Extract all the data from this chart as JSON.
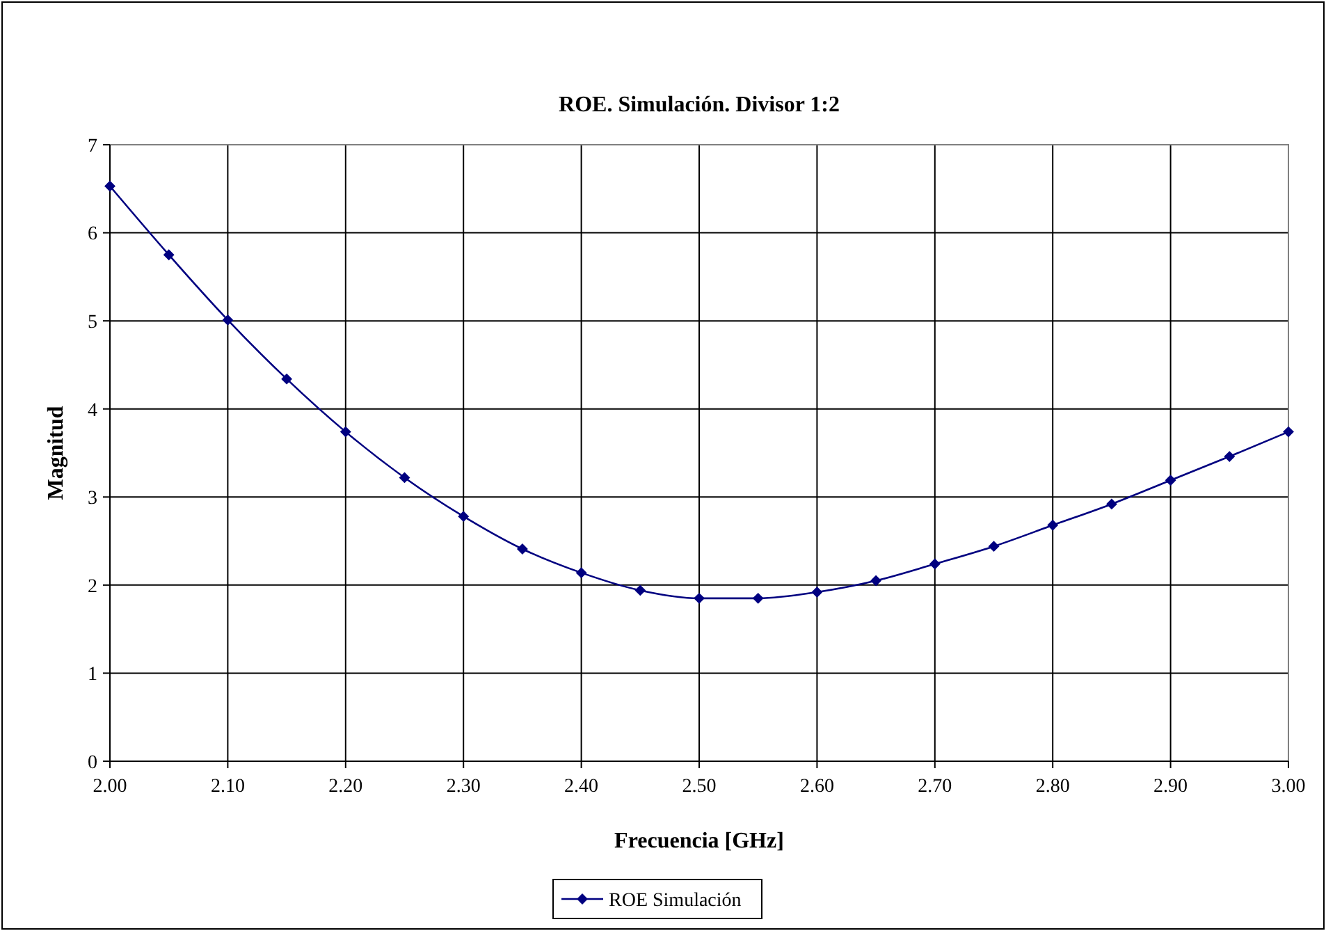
{
  "chart_data": {
    "type": "line",
    "title": "ROE. Simulación. Divisor 1:2",
    "xlabel": "Frecuencia [GHz]",
    "ylabel": "Magnitud",
    "x": [
      2.0,
      2.05,
      2.1,
      2.15,
      2.2,
      2.25,
      2.3,
      2.35,
      2.4,
      2.45,
      2.5,
      2.55,
      2.6,
      2.65,
      2.7,
      2.75,
      2.8,
      2.85,
      2.9,
      2.95,
      3.0
    ],
    "series": [
      {
        "name": "ROE Simulación",
        "color": "#000080",
        "values": [
          6.53,
          5.75,
          5.01,
          4.34,
          3.74,
          3.22,
          2.78,
          2.41,
          2.14,
          1.94,
          1.85,
          1.85,
          1.92,
          2.05,
          2.24,
          2.44,
          2.68,
          2.92,
          3.19,
          3.46,
          3.74
        ]
      }
    ],
    "xlim": [
      2.0,
      3.0
    ],
    "xticks": [
      {
        "value": 2.0,
        "label": "2.00"
      },
      {
        "value": 2.1,
        "label": "2.10"
      },
      {
        "value": 2.2,
        "label": "2.20"
      },
      {
        "value": 2.3,
        "label": "2.30"
      },
      {
        "value": 2.4,
        "label": "2.40"
      },
      {
        "value": 2.5,
        "label": "2.50"
      },
      {
        "value": 2.6,
        "label": "2.60"
      },
      {
        "value": 2.7,
        "label": "2.70"
      },
      {
        "value": 2.8,
        "label": "2.80"
      },
      {
        "value": 2.9,
        "label": "2.90"
      },
      {
        "value": 3.0,
        "label": "3.00"
      }
    ],
    "ylim": [
      0,
      7
    ],
    "yticks": [
      0,
      1,
      2,
      3,
      4,
      5,
      6,
      7
    ],
    "grid": true,
    "legend": "bottom",
    "marker": "diamond",
    "line_style": "solid"
  }
}
